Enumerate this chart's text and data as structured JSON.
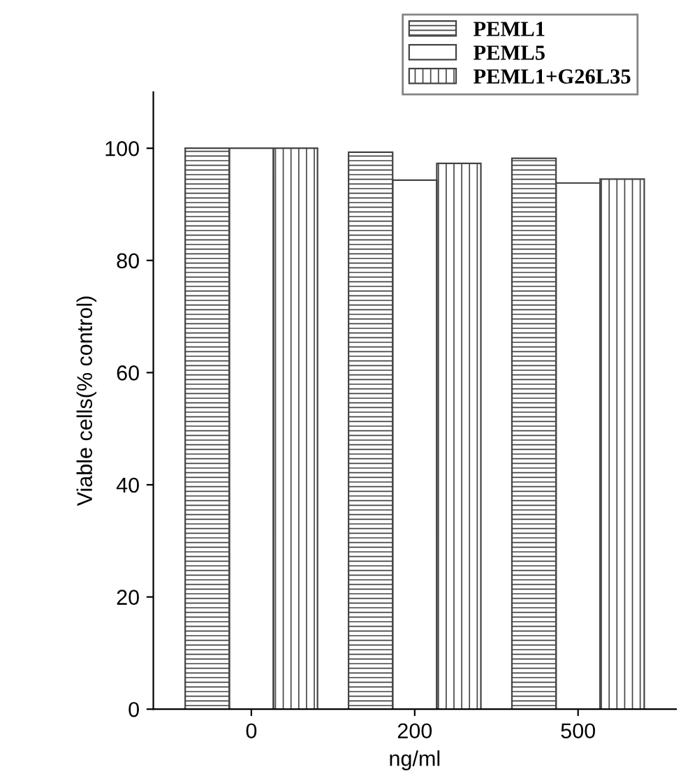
{
  "chart_data": {
    "type": "bar",
    "xlabel": "ng/ml",
    "ylabel": "Viable cells(% control)",
    "categories": [
      "0",
      "200",
      "500"
    ],
    "series": [
      {
        "name": "PEML1",
        "color": "#444444",
        "values": [
          100,
          99.3,
          98.2
        ]
      },
      {
        "name": "PEML5",
        "color": "#444444",
        "values": [
          100,
          94.3,
          93.8
        ]
      },
      {
        "name": "PEML1+G26L35",
        "color": "#444444",
        "values": [
          100,
          97.3,
          94.5
        ]
      }
    ],
    "ylim": [
      0,
      110
    ],
    "yticks": [
      0,
      20,
      40,
      60,
      80,
      100
    ],
    "grid": false,
    "legend": "top right"
  }
}
